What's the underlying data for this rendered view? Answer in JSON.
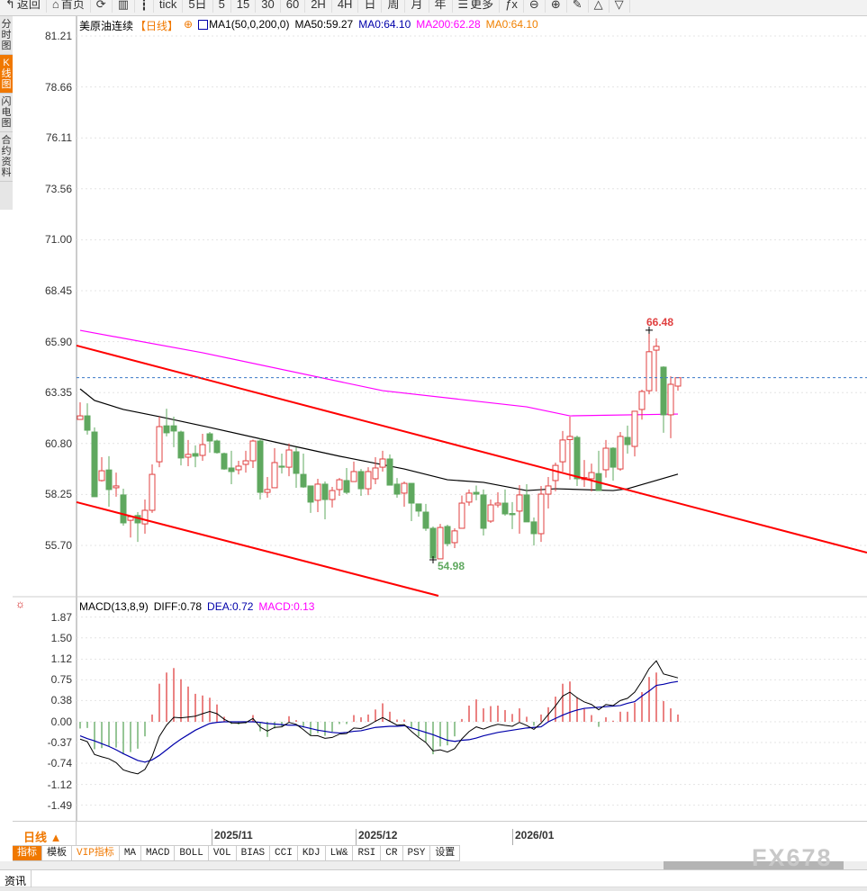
{
  "toolbar": {
    "items": [
      {
        "label": "返回",
        "icon": "back-arrow-icon"
      },
      {
        "label": "首页",
        "icon": "home-icon"
      },
      {
        "label": "",
        "icon": "refresh-icon"
      },
      {
        "label": "",
        "icon": "bar-chart-icon"
      },
      {
        "label": "",
        "icon": "candlestick-icon"
      },
      {
        "label": "tick"
      },
      {
        "label": "5日"
      },
      {
        "label": "5"
      },
      {
        "label": "15"
      },
      {
        "label": "30"
      },
      {
        "label": "60"
      },
      {
        "label": "2H"
      },
      {
        "label": "4H"
      },
      {
        "label": "日"
      },
      {
        "label": "周"
      },
      {
        "label": "月"
      },
      {
        "label": "年"
      },
      {
        "label": "更多",
        "icon": "menu-icon"
      },
      {
        "label": "ƒx",
        "icon": "formula-icon"
      },
      {
        "label": "⊖",
        "icon": "zoom-out-icon"
      },
      {
        "label": "⊕",
        "icon": "zoom-in-icon"
      },
      {
        "label": "✎",
        "icon": "pencil-icon"
      },
      {
        "label": "△",
        "icon": "triangle-up-icon"
      },
      {
        "label": "▽",
        "icon": "triangle-down-icon"
      }
    ]
  },
  "sidebar": {
    "tabs": [
      {
        "label": "分时图"
      },
      {
        "label": "K线图",
        "active": true
      },
      {
        "label": "闪电图"
      },
      {
        "label": "合约资料"
      }
    ]
  },
  "legend": {
    "symbol": "美原油连续",
    "period": "【日线】",
    "ma_name": "MA1(50,0,200,0)",
    "ma50": "MA50:59.27",
    "ma0a": "MA0:64.10",
    "ma200": "MA200:62.28",
    "ma0b": "MA0:64.10"
  },
  "macd_legend": {
    "name": "MACD(13,8,9)",
    "diff": "DIFF:0.78",
    "dea": "DEA:0.72",
    "macd": "MACD:0.13"
  },
  "colors": {
    "up": "#e04040",
    "down": "#5fa85f",
    "ma50": "#000000",
    "ma200": "#ff00ff",
    "trend": "#ff0000",
    "dea": "#0000aa",
    "diff": "#000000",
    "accent": "#f07800"
  },
  "chart_data": {
    "type": "candlestick",
    "y_ticks": [
      "81.21",
      "78.66",
      "76.11",
      "73.56",
      "71.00",
      "68.45",
      "65.90",
      "63.35",
      "60.80",
      "58.25",
      "55.70"
    ],
    "ylim": [
      55.7,
      81.21
    ],
    "last_price": 64.1,
    "high_label": "66.48",
    "low_label": "54.98",
    "x_labels": [
      {
        "label": "2025/11",
        "bar": 19.25
      },
      {
        "label": "2025/12",
        "bar": 39.25
      },
      {
        "label": "2026/01",
        "bar": 61
      }
    ],
    "ohlc": [
      [
        62.01,
        62.87,
        62.01,
        62.19
      ],
      [
        62.19,
        62.82,
        61.25,
        61.47
      ],
      [
        61.38,
        61.61,
        58.14,
        58.14
      ],
      [
        58.95,
        60.12,
        58.9,
        59.44
      ],
      [
        59.48,
        60.17,
        57.64,
        58.5
      ],
      [
        58.59,
        59.35,
        58.14,
        58.68
      ],
      [
        58.23,
        58.54,
        56.69,
        56.83
      ],
      [
        56.96,
        57.2,
        56.1,
        57.14
      ],
      [
        57.2,
        57.37,
        55.88,
        56.83
      ],
      [
        56.78,
        58.0,
        56.29,
        57.46
      ],
      [
        57.46,
        59.76,
        57.33,
        59.26
      ],
      [
        59.89,
        62.15,
        59.62,
        61.65
      ],
      [
        61.69,
        62.55,
        61.16,
        61.34
      ],
      [
        61.69,
        62.15,
        60.62,
        61.43
      ],
      [
        61.38,
        61.45,
        59.71,
        60.08
      ],
      [
        60.12,
        60.98,
        59.67,
        60.26
      ],
      [
        60.3,
        60.71,
        59.62,
        60.17
      ],
      [
        60.21,
        61.29,
        59.94,
        60.75
      ],
      [
        61.29,
        61.38,
        60.35,
        60.93
      ],
      [
        60.93,
        61.0,
        60.3,
        60.35
      ],
      [
        60.3,
        60.35,
        59.49,
        59.53
      ],
      [
        59.58,
        60.44,
        58.77,
        59.4
      ],
      [
        59.49,
        59.94,
        59.26,
        59.67
      ],
      [
        59.76,
        60.44,
        59.35,
        59.94
      ],
      [
        59.94,
        61.0,
        59.58,
        60.93
      ],
      [
        60.93,
        61.05,
        58.0,
        58.36
      ],
      [
        58.36,
        59.13,
        58.09,
        58.5
      ],
      [
        58.59,
        60.57,
        58.59,
        59.85
      ],
      [
        59.67,
        60.3,
        59.3,
        59.62
      ],
      [
        59.62,
        60.8,
        59.17,
        60.48
      ],
      [
        60.39,
        60.62,
        58.59,
        59.31
      ],
      [
        59.26,
        60.3,
        58.59,
        58.63
      ],
      [
        58.68,
        58.7,
        57.33,
        57.87
      ],
      [
        57.96,
        59.04,
        57.37,
        58.77
      ],
      [
        58.77,
        58.9,
        57.01,
        58.0
      ],
      [
        58.0,
        58.63,
        57.6,
        58.45
      ],
      [
        58.5,
        59.08,
        58.18,
        58.99
      ],
      [
        58.95,
        59.58,
        58.27,
        58.36
      ],
      [
        58.9,
        59.9,
        58.9,
        59.4
      ],
      [
        59.4,
        59.53,
        58.18,
        58.54
      ],
      [
        58.54,
        59.62,
        58.22,
        59.4
      ],
      [
        59.04,
        60.12,
        58.77,
        59.58
      ],
      [
        59.62,
        60.44,
        59.4,
        60.03
      ],
      [
        60.03,
        60.26,
        58.7,
        58.72
      ],
      [
        58.77,
        59.08,
        58.09,
        58.27
      ],
      [
        58.32,
        58.9,
        57.64,
        58.81
      ],
      [
        58.81,
        58.81,
        56.92,
        57.82
      ],
      [
        57.78,
        57.78,
        57.14,
        57.42
      ],
      [
        57.37,
        57.78,
        56.43,
        56.56
      ],
      [
        56.56,
        56.65,
        54.98,
        55.07
      ],
      [
        55.03,
        56.78,
        55.03,
        56.6
      ],
      [
        56.65,
        56.74,
        55.66,
        55.79
      ],
      [
        55.84,
        56.56,
        55.57,
        56.43
      ],
      [
        56.56,
        58.2,
        56.56,
        57.82
      ],
      [
        57.87,
        58.5,
        57.69,
        58.32
      ],
      [
        58.36,
        58.7,
        57.96,
        58.27
      ],
      [
        58.23,
        58.5,
        56.2,
        56.56
      ],
      [
        56.92,
        58.0,
        56.83,
        57.73
      ],
      [
        57.73,
        58.36,
        57.6,
        57.82
      ],
      [
        57.82,
        58.5,
        57.19,
        57.28
      ],
      [
        57.3,
        57.87,
        56.52,
        57.24
      ],
      [
        57.42,
        58.72,
        56.29,
        58.23
      ],
      [
        58.23,
        58.77,
        56.88,
        56.88
      ],
      [
        56.88,
        57.1,
        55.7,
        56.29
      ],
      [
        56.29,
        58.68,
        55.88,
        58.27
      ],
      [
        58.27,
        59.13,
        57.55,
        58.68
      ],
      [
        58.95,
        59.85,
        58.41,
        59.71
      ],
      [
        59.89,
        61.43,
        59.4,
        60.98
      ],
      [
        61.0,
        62.15,
        59.0,
        61.16
      ],
      [
        61.11,
        61.2,
        58.68,
        59.04
      ],
      [
        59.0,
        59.98,
        58.63,
        59.1
      ],
      [
        59.04,
        59.8,
        58.4,
        59.35
      ],
      [
        59.3,
        60.44,
        58.45,
        58.45
      ],
      [
        59.49,
        60.98,
        59.1,
        60.57
      ],
      [
        60.57,
        60.62,
        58.95,
        59.62
      ],
      [
        59.53,
        61.38,
        59.44,
        61.16
      ],
      [
        61.11,
        61.7,
        60.3,
        60.75
      ],
      [
        60.66,
        62.42,
        60.16,
        62.42
      ],
      [
        62.51,
        63.5,
        62.0,
        63.41
      ],
      [
        63.45,
        66.48,
        63.27,
        65.4
      ],
      [
        65.48,
        66.07,
        63.41,
        65.67
      ],
      [
        64.63,
        64.67,
        61.34,
        62.24
      ],
      [
        62.24,
        64.17,
        61.07,
        63.77
      ],
      [
        63.68,
        64.13,
        63.45,
        64.1
      ]
    ],
    "ma50": [
      [
        1,
        63.54
      ],
      [
        3,
        62.96
      ],
      [
        7,
        62.51
      ],
      [
        12,
        62.15
      ],
      [
        19,
        61.61
      ],
      [
        29,
        60.8
      ],
      [
        37,
        60.17
      ],
      [
        46,
        59.53
      ],
      [
        52,
        58.99
      ],
      [
        57,
        58.86
      ],
      [
        63,
        58.45
      ],
      [
        67,
        58.54
      ],
      [
        75,
        58.45
      ],
      [
        77,
        58.54
      ],
      [
        84,
        59.27
      ]
    ],
    "ma200": [
      [
        1,
        66.47
      ],
      [
        18,
        65.35
      ],
      [
        43,
        63.45
      ],
      [
        63,
        62.64
      ],
      [
        69,
        62.19
      ],
      [
        84,
        62.28
      ]
    ],
    "trendlines": [
      {
        "from": [
          0.5,
          65.71
        ],
        "to": [
          110.25,
          55.34
        ]
      },
      {
        "from": [
          0.5,
          57.87
        ],
        "to": [
          50.75,
          53.18
        ]
      }
    ],
    "macd": {
      "y_ticks": [
        "1.87",
        "1.50",
        "1.12",
        "0.75",
        "0.38",
        "0.00",
        "-0.37",
        "-0.74",
        "-1.12",
        "-1.49"
      ],
      "ylim": [
        -1.49,
        1.87
      ],
      "histogram": [
        -0.12,
        -0.11,
        -0.49,
        -0.47,
        -0.44,
        -0.46,
        -0.58,
        -0.54,
        -0.48,
        -0.26,
        0.13,
        0.68,
        0.88,
        0.96,
        0.76,
        0.63,
        0.5,
        0.47,
        0.43,
        0.31,
        0.09,
        -0.04,
        -0.05,
        -0.03,
        0.12,
        -0.17,
        -0.27,
        -0.12,
        -0.08,
        0.1,
        0.03,
        -0.1,
        -0.25,
        -0.2,
        -0.25,
        -0.18,
        -0.04,
        -0.04,
        0.12,
        0.08,
        0.13,
        0.22,
        0.33,
        0.18,
        0.04,
        0.04,
        -0.12,
        -0.26,
        -0.36,
        -0.58,
        -0.44,
        -0.42,
        -0.26,
        0.05,
        0.29,
        0.4,
        0.24,
        0.28,
        0.29,
        0.21,
        0.14,
        0.24,
        0.09,
        -0.07,
        0.13,
        0.26,
        0.45,
        0.68,
        0.72,
        0.44,
        0.23,
        0.12,
        -0.09,
        0.08,
        0.02,
        0.18,
        0.18,
        0.34,
        0.53,
        0.8,
        0.88,
        0.37,
        0.24,
        0.13
      ],
      "dea": [
        -0.25,
        -0.3,
        -0.34,
        -0.39,
        -0.44,
        -0.5,
        -0.57,
        -0.63,
        -0.69,
        -0.72,
        -0.68,
        -0.6,
        -0.5,
        -0.4,
        -0.31,
        -0.23,
        -0.15,
        -0.09,
        -0.03,
        -0.01,
        0,
        0,
        0,
        0,
        0,
        -0.01,
        -0.03,
        -0.04,
        -0.05,
        -0.06,
        -0.06,
        -0.09,
        -0.12,
        -0.15,
        -0.17,
        -0.19,
        -0.2,
        -0.19,
        -0.17,
        -0.16,
        -0.13,
        -0.1,
        -0.09,
        -0.08,
        -0.08,
        -0.07,
        -0.11,
        -0.15,
        -0.19,
        -0.23,
        -0.28,
        -0.33,
        -0.35,
        -0.33,
        -0.32,
        -0.29,
        -0.25,
        -0.22,
        -0.19,
        -0.17,
        -0.15,
        -0.13,
        -0.11,
        -0.1,
        -0.09,
        0.0,
        0.06,
        0.12,
        0.17,
        0.21,
        0.24,
        0.25,
        0.26,
        0.27,
        0.28,
        0.29,
        0.33,
        0.36,
        0.46,
        0.55,
        0.65,
        0.67,
        0.7,
        0.72
      ]
    }
  },
  "period_selector": "日线 ▲",
  "indicator_tabs": [
    {
      "label": "指标",
      "active": true
    },
    {
      "label": "模板"
    },
    {
      "label": "VIP指标",
      "vip": true
    },
    {
      "label": "MA"
    },
    {
      "label": "MACD"
    },
    {
      "label": "BOLL"
    },
    {
      "label": "VOL"
    },
    {
      "label": "BIAS"
    },
    {
      "label": "CCI"
    },
    {
      "label": "KDJ"
    },
    {
      "label": "LW&"
    },
    {
      "label": "RSI"
    },
    {
      "label": "CR"
    },
    {
      "label": "PSY"
    },
    {
      "label": "设置"
    }
  ],
  "watermark": "FX678",
  "news_tab": "资讯"
}
